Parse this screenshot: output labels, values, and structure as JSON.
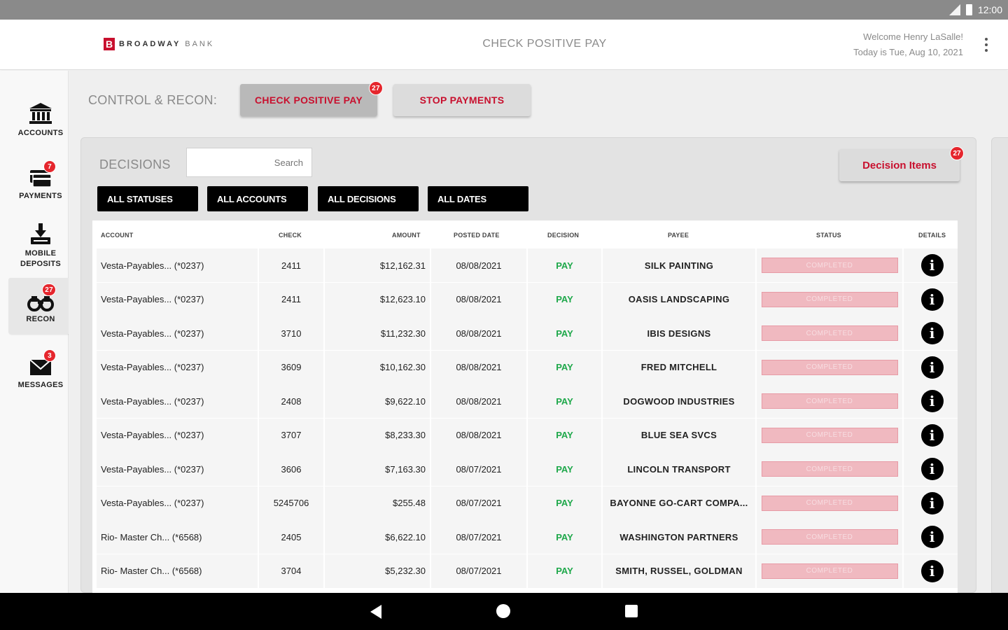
{
  "statusbar": {
    "time": "12:00"
  },
  "header": {
    "logo_name": "BROADWAY",
    "logo_suffix": "BANK",
    "title": "CHECK POSITIVE PAY",
    "welcome": "Welcome Henry LaSalle!",
    "today": "Today is Tue, Aug 10, 2021"
  },
  "sidebar": {
    "items": [
      {
        "label": "ACCOUNTS",
        "icon": "bank-icon",
        "badge": ""
      },
      {
        "label": "PAYMENTS",
        "icon": "payments-icon",
        "badge": "7"
      },
      {
        "label_line1": "MOBILE",
        "label_line2": "DEPOSITS",
        "icon": "mobile-deposit-icon",
        "badge": ""
      },
      {
        "label": "RECON",
        "icon": "binoculars-icon",
        "badge": "27"
      },
      {
        "label": "MESSAGES",
        "icon": "envelope-icon",
        "badge": "3"
      }
    ]
  },
  "control": {
    "label": "CONTROL & RECON:",
    "check_positive_pay": "CHECK POSITIVE PAY",
    "check_positive_pay_badge": "27",
    "stop_payments": "STOP PAYMENTS"
  },
  "decisions": {
    "label": "DECISIONS",
    "search_placeholder": "Search",
    "decision_items_label": "Decision Items",
    "decision_items_badge": "27",
    "filters": [
      "ALL STATUSES",
      "ALL ACCOUNTS",
      "ALL DECISIONS",
      "ALL DATES"
    ]
  },
  "table": {
    "columns": [
      "ACCOUNT",
      "CHECK",
      "AMOUNT",
      "POSTED DATE",
      "DECISION",
      "PAYEE",
      "STATUS",
      "DETAILS"
    ],
    "rows": [
      {
        "account": "Vesta-Payables... (*0237)",
        "check": "2411",
        "amount": "$12,162.31",
        "posted": "08/08/2021",
        "decision": "PAY",
        "payee": "SILK PAINTING",
        "status": "COMPLETED"
      },
      {
        "account": "Vesta-Payables... (*0237)",
        "check": "2411",
        "amount": "$12,623.10",
        "posted": "08/08/2021",
        "decision": "PAY",
        "payee": "OASIS LANDSCAPING",
        "status": "COMPLETED"
      },
      {
        "account": "Vesta-Payables... (*0237)",
        "check": "3710",
        "amount": "$11,232.30",
        "posted": "08/08/2021",
        "decision": "PAY",
        "payee": "IBIS DESIGNS",
        "status": "COMPLETED"
      },
      {
        "account": "Vesta-Payables... (*0237)",
        "check": "3609",
        "amount": "$10,162.30",
        "posted": "08/08/2021",
        "decision": "PAY",
        "payee": "FRED MITCHELL",
        "status": "COMPLETED"
      },
      {
        "account": "Vesta-Payables... (*0237)",
        "check": "2408",
        "amount": "$9,622.10",
        "posted": "08/08/2021",
        "decision": "PAY",
        "payee": "DOGWOOD INDUSTRIES",
        "status": "COMPLETED"
      },
      {
        "account": "Vesta-Payables... (*0237)",
        "check": "3707",
        "amount": "$8,233.30",
        "posted": "08/08/2021",
        "decision": "PAY",
        "payee": "BLUE SEA SVCS",
        "status": "COMPLETED"
      },
      {
        "account": "Vesta-Payables... (*0237)",
        "check": "3606",
        "amount": "$7,163.30",
        "posted": "08/07/2021",
        "decision": "PAY",
        "payee": "LINCOLN TRANSPORT",
        "status": "COMPLETED"
      },
      {
        "account": "Vesta-Payables... (*0237)",
        "check": "5245706",
        "amount": "$255.48",
        "posted": "08/07/2021",
        "decision": "PAY",
        "payee": "BAYONNE GO-CART COMPA...",
        "status": "COMPLETED"
      },
      {
        "account": "Rio- Master Ch... (*6568)",
        "check": "2405",
        "amount": "$6,622.10",
        "posted": "08/07/2021",
        "decision": "PAY",
        "payee": "WASHINGTON PARTNERS",
        "status": "COMPLETED"
      },
      {
        "account": "Rio- Master Ch... (*6568)",
        "check": "3704",
        "amount": "$5,232.30",
        "posted": "08/07/2021",
        "decision": "PAY",
        "payee": "SMITH, RUSSEL, GOLDMAN",
        "status": "COMPLETED"
      }
    ]
  },
  "colors": {
    "accent": "#c8102e",
    "pay": "#1ea84a",
    "badge": "#e5262d",
    "status_pill": "#f0b9c0"
  }
}
